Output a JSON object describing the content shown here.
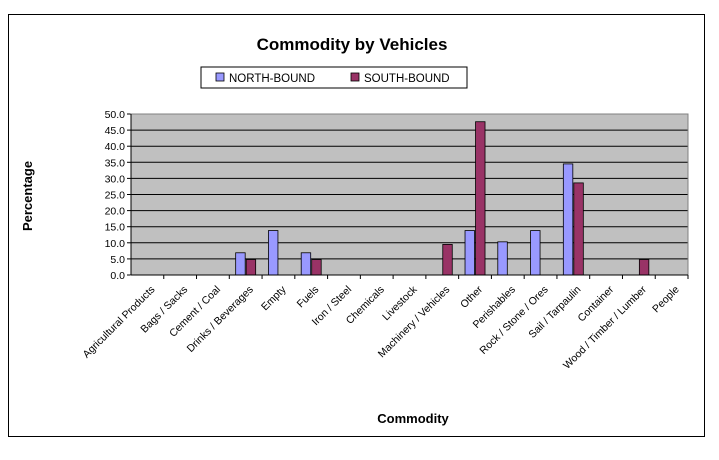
{
  "chart_data": {
    "type": "bar",
    "title": "Commodity by Vehicles",
    "xlabel": "Commodity",
    "ylabel": "Percentage",
    "ylim": [
      0,
      50
    ],
    "ytick_step": 5,
    "ytick_labels": [
      "0.0",
      "5.0",
      "10.0",
      "15.0",
      "20.0",
      "25.0",
      "30.0",
      "35.0",
      "40.0",
      "45.0",
      "50.0"
    ],
    "grid": true,
    "legend_position": "top",
    "plot_background": "#c0c0c0",
    "categories": [
      "Agricultural Products",
      "Bags / Sacks",
      "Cement / Coal",
      "Drinks / Beverages",
      "Empty",
      "Fuels",
      "Iron / Steel",
      "Chemicals",
      "Livestock",
      "Machinery / Vehicles",
      "Other",
      "Perishables",
      "Rock / Stone / Ores",
      "Sail / Tarpaulin",
      "Container",
      "Wood / Timber / Lumber",
      "People"
    ],
    "series": [
      {
        "name": "NORTH-BOUND",
        "color": "#9999ff",
        "values": [
          0,
          0,
          0,
          6.9,
          13.8,
          6.9,
          0,
          0,
          0,
          0,
          13.8,
          10.3,
          13.8,
          34.5,
          0,
          0,
          0
        ]
      },
      {
        "name": "SOUTH-BOUND",
        "color": "#993366",
        "values": [
          0,
          0,
          0,
          4.8,
          0,
          4.8,
          0,
          0,
          0,
          9.5,
          47.6,
          0,
          0,
          28.6,
          0,
          4.8,
          0
        ]
      }
    ]
  }
}
